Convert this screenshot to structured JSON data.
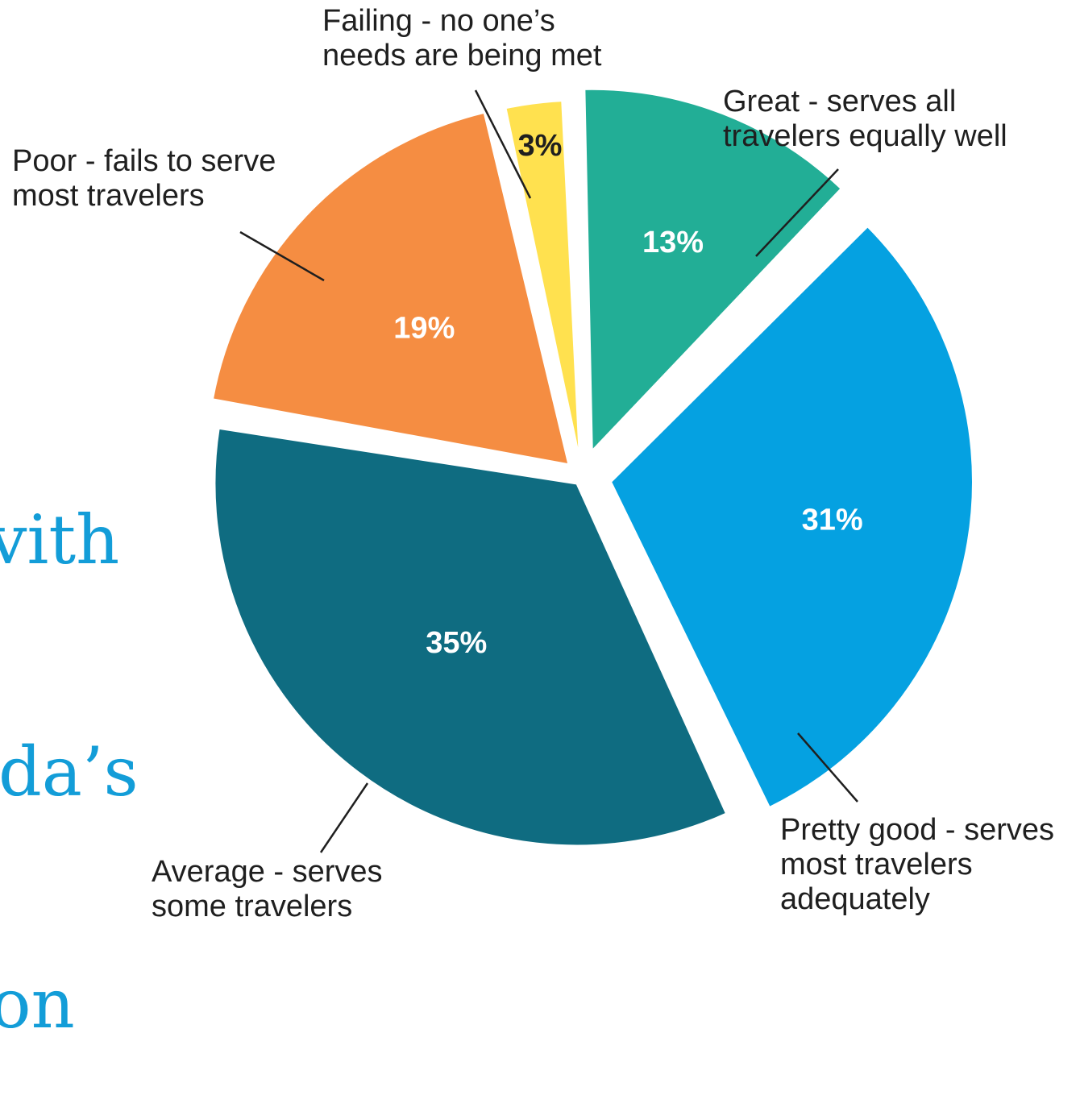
{
  "background_title": {
    "line_1": "vith",
    "line_2": "da’s",
    "line_3": "on",
    "color": "#139dd8"
  },
  "chart_data": {
    "type": "pie",
    "unit": "%",
    "legend": "none",
    "slices": [
      {
        "label_lines": [
          "Great - serves all",
          "travelers equally well"
        ],
        "value": 13,
        "value_label": "13%",
        "color": "#22ae96"
      },
      {
        "label_lines": [
          "Pretty good - serves",
          "most travelers",
          "adequately"
        ],
        "value": 31,
        "value_label": "31%",
        "color": "#05a1e1"
      },
      {
        "label_lines": [
          "Average - serves",
          "some travelers"
        ],
        "value": 35,
        "value_label": "35%",
        "color": "#0f6c81"
      },
      {
        "label_lines": [
          "Poor - fails to serve",
          "most travelers"
        ],
        "value": 19,
        "value_label": "19%",
        "color": "#f58d42"
      },
      {
        "label_lines": [
          "Failing - no one’s",
          "needs are being met"
        ],
        "value": 3,
        "value_label": "3%",
        "color": "#ffe14f"
      }
    ]
  }
}
